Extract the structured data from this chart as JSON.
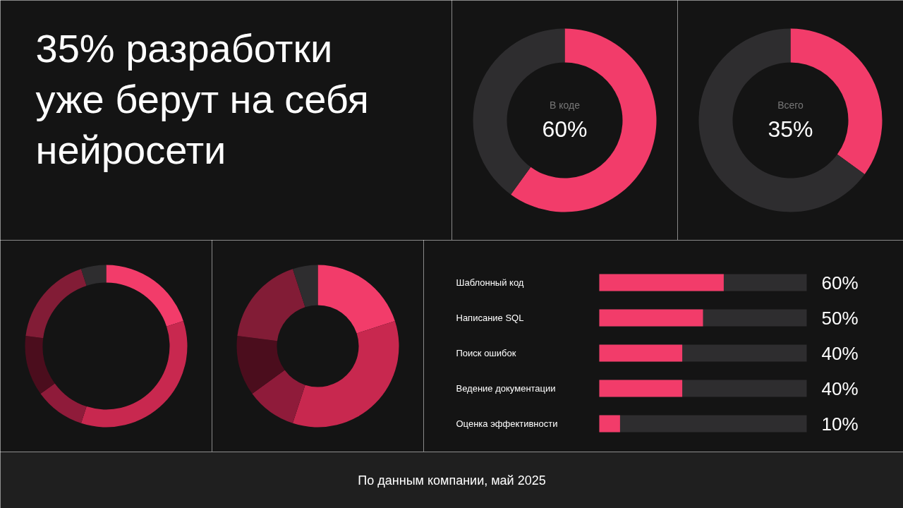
{
  "chart_data": [
    {
      "type": "other",
      "title": "35% разработки уже берут на себя нейросети",
      "annotations": [
        "По данным компании, май 2025"
      ]
    },
    {
      "type": "donut",
      "title": "В коде",
      "categories": [
        null,
        null
      ],
      "values": [
        60,
        40
      ],
      "colors": [
        "#f23c6a",
        "#2e2d2f"
      ],
      "annotations": [
        "60%"
      ]
    },
    {
      "type": "donut",
      "title": "Всего",
      "categories": [
        null,
        null
      ],
      "values": [
        35,
        65
      ],
      "colors": [
        "#f23c6a",
        "#2e2d2f"
      ],
      "annotations": [
        "35%"
      ]
    },
    {
      "type": "donut",
      "categories": [
        null,
        null,
        null,
        null,
        null,
        null
      ],
      "values": [
        20,
        35,
        10,
        12,
        18,
        5
      ],
      "colors": [
        "#f23c6a",
        "#c8284f",
        "#8f1b3a",
        "#4b0d1d",
        "#821c36",
        "#2e2d2f"
      ]
    },
    {
      "type": "donut",
      "categories": [
        null,
        null,
        null,
        null,
        null,
        null
      ],
      "values": [
        20,
        35,
        10,
        12,
        18,
        5
      ],
      "colors": [
        "#f23c6a",
        "#c8284f",
        "#8f1b3a",
        "#4b0d1d",
        "#821c36",
        "#2e2d2f"
      ]
    },
    {
      "type": "bar",
      "orientation": "horizontal",
      "categories": [
        "Шаблонный код",
        "Написание SQL",
        "Поиск ошибок",
        "Ведение документации",
        "Оценка эффективности"
      ],
      "values": [
        60,
        50,
        40,
        40,
        10
      ],
      "color": "#f23c6a",
      "xlim": [
        0,
        100
      ],
      "tick_labels": false,
      "value_labels": [
        "60%",
        "50%",
        "40%",
        "40%",
        "10%"
      ]
    }
  ]
}
